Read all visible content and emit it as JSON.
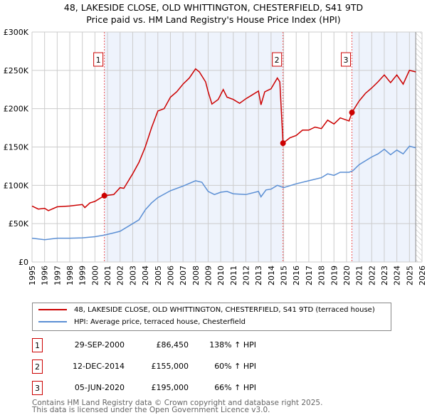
{
  "title_line1": "48, LAKESIDE CLOSE, OLD WHITTINGTON, CHESTERFIELD, S41 9TD",
  "title_line2": "Price paid vs. HM Land Registry's House Price Index (HPI)",
  "chart_data": {
    "type": "line",
    "xlim": [
      1995,
      2026
    ],
    "ylim": [
      0,
      300000
    ],
    "yticks": [
      {
        "v": 0,
        "label": "£0"
      },
      {
        "v": 50000,
        "label": "£50K"
      },
      {
        "v": 100000,
        "label": "£100K"
      },
      {
        "v": 150000,
        "label": "£150K"
      },
      {
        "v": 200000,
        "label": "£200K"
      },
      {
        "v": 250000,
        "label": "£250K"
      },
      {
        "v": 300000,
        "label": "£300K"
      }
    ],
    "xticks": [
      "1995",
      "1996",
      "1997",
      "1998",
      "1999",
      "2000",
      "2001",
      "2002",
      "2003",
      "2004",
      "2005",
      "2006",
      "2007",
      "2008",
      "2009",
      "2010",
      "2011",
      "2012",
      "2013",
      "2014",
      "2015",
      "2016",
      "2017",
      "2018",
      "2019",
      "2020",
      "2021",
      "2022",
      "2023",
      "2024",
      "2025",
      "2026"
    ],
    "data_end": 2025.5,
    "series": [
      {
        "name": "48, LAKESIDE CLOSE, OLD WHITTINGTON, CHESTERFIELD, S41 9TD (terraced house)",
        "color": "#cc0000",
        "x": [
          1995,
          1995.5,
          1996,
          1996.3,
          1997,
          1998,
          1999,
          1999.2,
          1999.6,
          2000,
          2000.75,
          2001.5,
          2002,
          2002.3,
          2003,
          2003.5,
          2004,
          2004.5,
          2005,
          2005.5,
          2006,
          2006.5,
          2007,
          2007.5,
          2008,
          2008.3,
          2008.8,
          2009,
          2009.3,
          2009.8,
          2010.2,
          2010.5,
          2011,
          2011.5,
          2012,
          2012.5,
          2013,
          2013.2,
          2013.5,
          2014,
          2014.5,
          2014.7,
          2014.95,
          2015.5,
          2016,
          2016.5,
          2017,
          2017.5,
          2018,
          2018.5,
          2019,
          2019.5,
          2020.2,
          2020.43,
          2021,
          2021.5,
          2022,
          2022.5,
          2023,
          2023.5,
          2024,
          2024.5,
          2025,
          2025.5
        ],
        "y": [
          73000,
          69000,
          70000,
          67000,
          72000,
          73000,
          75000,
          71000,
          77000,
          79000,
          86450,
          88000,
          97000,
          96000,
          115000,
          130000,
          150000,
          175000,
          197000,
          200000,
          215000,
          222000,
          232000,
          240000,
          252000,
          248000,
          235000,
          222000,
          206000,
          212000,
          225000,
          215000,
          212000,
          207000,
          213000,
          218000,
          223000,
          205000,
          222000,
          226000,
          240000,
          235000,
          155000,
          162000,
          165000,
          172000,
          172000,
          176000,
          174000,
          185000,
          180000,
          188000,
          184000,
          195000,
          210000,
          220000,
          227000,
          235000,
          244000,
          234000,
          244000,
          232000,
          250000,
          248000
        ]
      },
      {
        "name": "HPI: Average price, terraced house, Chesterfield",
        "color": "#5b8fd4",
        "x": [
          1995,
          1996,
          1997,
          1998,
          1999,
          2000,
          2000.75,
          2001.5,
          2002,
          2003,
          2003.5,
          2004,
          2004.5,
          2005,
          2006,
          2007,
          2008,
          2008.5,
          2009,
          2009.5,
          2010,
          2010.5,
          2011,
          2012,
          2013,
          2013.2,
          2013.6,
          2014,
          2014.5,
          2015,
          2016,
          2017,
          2018,
          2018.5,
          2019,
          2019.5,
          2020.2,
          2020.5,
          2021,
          2022,
          2022.5,
          2023,
          2023.5,
          2024,
          2024.5,
          2025,
          2025.5
        ],
        "y": [
          31000,
          29000,
          31000,
          31000,
          31500,
          33000,
          35000,
          38000,
          40000,
          50000,
          55000,
          68000,
          77000,
          84000,
          93000,
          99000,
          106000,
          104000,
          92000,
          88000,
          91000,
          92000,
          89000,
          88000,
          92000,
          85000,
          94000,
          95000,
          100000,
          97000,
          102000,
          106000,
          110000,
          115000,
          113000,
          117000,
          117000,
          119000,
          127000,
          137000,
          141000,
          147000,
          140000,
          146000,
          141000,
          151000,
          149000
        ]
      }
    ],
    "sales": [
      {
        "label": "1",
        "x": 2000.75,
        "price": 86450,
        "date": "29-SEP-2000",
        "price_text": "£86,450",
        "hpi": "138% ↑ HPI"
      },
      {
        "label": "2",
        "x": 2014.95,
        "price": 155000,
        "date": "12-DEC-2014",
        "price_text": "£155,000",
        "hpi": "60% ↑ HPI"
      },
      {
        "label": "3",
        "x": 2020.43,
        "price": 195000,
        "date": "05-JUN-2020",
        "price_text": "£195,000",
        "hpi": "66% ↑ HPI"
      }
    ]
  },
  "legend": {
    "property": "48, LAKESIDE CLOSE, OLD WHITTINGTON, CHESTERFIELD, S41 9TD (terraced house)",
    "hpi": "HPI: Average price, terraced house, Chesterfield"
  },
  "footer": {
    "line1": "Contains HM Land Registry data © Crown copyright and database right 2025.",
    "line2": "This data is licensed under the Open Government Licence v3.0."
  }
}
